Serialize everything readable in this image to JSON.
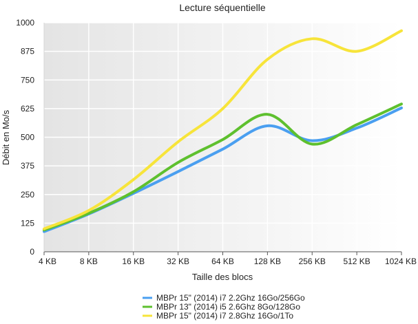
{
  "chart_data": {
    "type": "line",
    "title": "Lecture séquentielle",
    "xlabel": "Taille des blocs",
    "ylabel": "Débit en Mo/s",
    "categories": [
      "4 KB",
      "8 KB",
      "16 KB",
      "32 KB",
      "64 KB",
      "128 KB",
      "256 KB",
      "512 KB",
      "1024 KB"
    ],
    "ylim": [
      0,
      1000
    ],
    "yticks": [
      0,
      125,
      250,
      375,
      500,
      625,
      750,
      875,
      1000
    ],
    "grid": true,
    "legend_position": "bottom",
    "series": [
      {
        "name": "MBPr 15\" (2014) i7 2.2Ghz 16Go/256Go",
        "color": "#4a9ff0",
        "values": [
          88,
          165,
          255,
          350,
          448,
          550,
          485,
          540,
          628
        ]
      },
      {
        "name": "MBPr 13\" (2014) i5 2.6Ghz 8Go/128Go",
        "color": "#5ec02e",
        "values": [
          95,
          168,
          262,
          390,
          490,
          600,
          470,
          555,
          645
        ]
      },
      {
        "name": "MBPr 15\" (2014) i7 2.8Ghz 16Go/1To",
        "color": "#f7e43a",
        "values": [
          100,
          180,
          315,
          480,
          625,
          840,
          930,
          875,
          965
        ]
      }
    ]
  }
}
